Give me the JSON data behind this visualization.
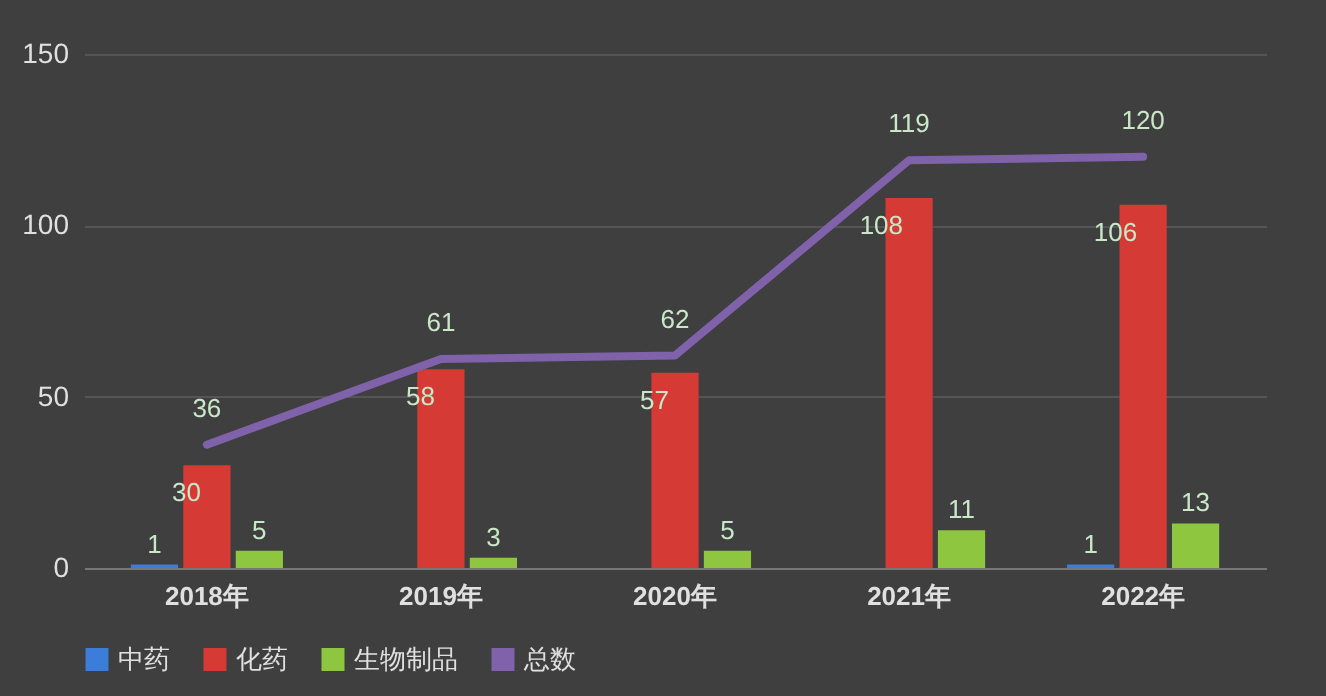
{
  "chart_data": {
    "type": "bar",
    "categories": [
      "2018年",
      "2019年",
      "2020年",
      "2021年",
      "2022年"
    ],
    "series": [
      {
        "name": "中药",
        "color": "#3b7dd8",
        "values": [
          1,
          null,
          null,
          null,
          1
        ]
      },
      {
        "name": "化药",
        "color": "#d63a35",
        "values": [
          30,
          58,
          57,
          108,
          106
        ]
      },
      {
        "name": "生物制品",
        "color": "#8fc63f",
        "values": [
          5,
          3,
          5,
          11,
          13
        ]
      },
      {
        "name": "总数",
        "type": "line",
        "color": "#7f62aa",
        "values": [
          36,
          61,
          62,
          119,
          120
        ]
      }
    ],
    "ylim": [
      0,
      150
    ],
    "yticks": [
      0,
      50,
      100,
      150
    ],
    "grid": "y",
    "legend": "bottom",
    "data_labels": true
  }
}
